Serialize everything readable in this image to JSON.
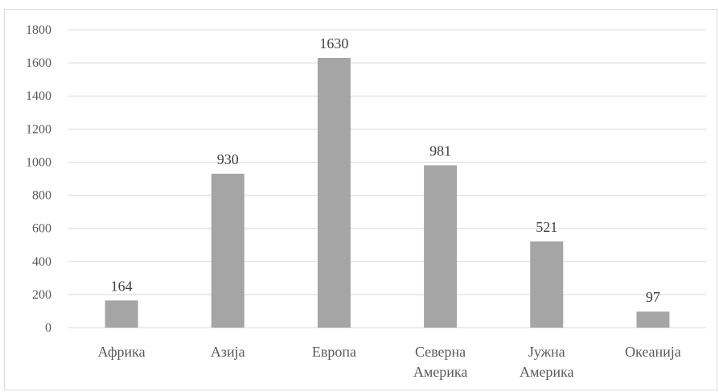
{
  "chart_data": {
    "type": "bar",
    "categories": [
      "Африка",
      "Азија",
      "Европа",
      "Северна Америка",
      "Јужна Америка",
      "Океанија"
    ],
    "category_lines": [
      [
        "Африка"
      ],
      [
        "Азија"
      ],
      [
        "Европа"
      ],
      [
        "Северна",
        "Америка"
      ],
      [
        "Јужна",
        "Америка"
      ],
      [
        "Океанија"
      ]
    ],
    "values": [
      164,
      930,
      1630,
      981,
      521,
      97
    ],
    "data_labels": [
      "164",
      "930",
      "1630",
      "981",
      "521",
      "97"
    ],
    "ylim": [
      0,
      1800
    ],
    "yticks": [
      0,
      200,
      400,
      600,
      800,
      1000,
      1200,
      1400,
      1600,
      1800
    ],
    "ytick_labels": [
      "0",
      "200",
      "400",
      "600",
      "800",
      "1000",
      "1200",
      "1400",
      "1600",
      "1800"
    ],
    "title": "",
    "xlabel": "",
    "ylabel": "",
    "grid": true,
    "legend": "none",
    "bar_color": "#a5a5a5"
  }
}
